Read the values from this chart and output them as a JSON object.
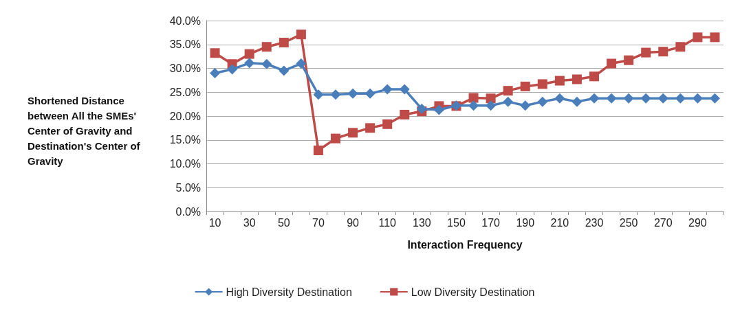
{
  "chart_data": {
    "type": "line",
    "xlabel": "Interaction Frequency",
    "ylabel": "Shortened Distance between All the SMEs' Center of Gravity and Destination's Center of Gravity",
    "categories": [
      "10",
      null,
      "30",
      null,
      "50",
      null,
      "70",
      null,
      "90",
      null,
      "110",
      null,
      "130",
      null,
      "150",
      null,
      "170",
      null,
      "190",
      null,
      "210",
      null,
      "230",
      null,
      "250",
      null,
      "270",
      null,
      "290",
      null
    ],
    "series": [
      {
        "name": "High Diversity Destination",
        "color": "#4a7ebb",
        "marker": "diamond",
        "values": [
          29.0,
          29.8,
          31.1,
          30.9,
          29.5,
          31.0,
          24.5,
          24.5,
          24.7,
          24.7,
          25.6,
          25.6,
          21.5,
          21.3,
          22.2,
          22.2,
          22.2,
          23.0,
          22.2,
          23.0,
          23.7,
          23.0,
          23.7,
          23.7,
          23.7,
          23.7,
          23.7,
          23.7,
          23.7,
          23.7
        ]
      },
      {
        "name": "Low Diversity Destination",
        "color": "#be4b48",
        "marker": "square",
        "values": [
          33.2,
          30.9,
          33.0,
          34.5,
          35.4,
          37.1,
          12.8,
          15.3,
          16.5,
          17.5,
          18.3,
          20.3,
          21.0,
          22.1,
          22.1,
          23.8,
          23.7,
          25.3,
          26.2,
          26.7,
          27.4,
          27.7,
          28.3,
          31.0,
          31.7,
          33.3,
          33.5,
          34.5,
          36.5,
          36.5
        ]
      }
    ],
    "ylim": [
      0,
      40
    ],
    "yticks": [
      {
        "value": 0,
        "label": "0.0%"
      },
      {
        "value": 5,
        "label": "5.0%"
      },
      {
        "value": 10,
        "label": "10.0%"
      },
      {
        "value": 15,
        "label": "15.0%"
      },
      {
        "value": 20,
        "label": "20.0%"
      },
      {
        "value": 25,
        "label": "25.0%"
      },
      {
        "value": 30,
        "label": "30.0%"
      },
      {
        "value": 35,
        "label": "35.0%"
      },
      {
        "value": 40,
        "label": "40.0%"
      }
    ],
    "grid": "y",
    "legend": "bottom",
    "line_style": "solid"
  }
}
